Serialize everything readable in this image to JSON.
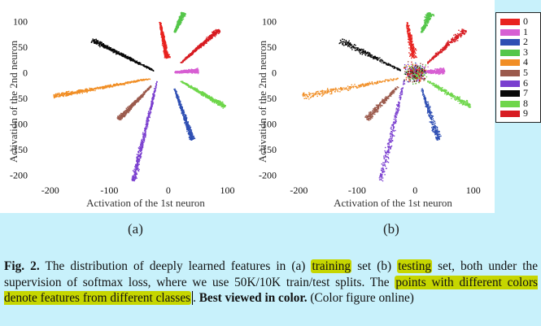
{
  "legend": {
    "items": [
      {
        "label": "0",
        "color": "#e8221f"
      },
      {
        "label": "1",
        "color": "#d75fd3"
      },
      {
        "label": "2",
        "color": "#2f4fb3"
      },
      {
        "label": "3",
        "color": "#55c64a"
      },
      {
        "label": "4",
        "color": "#f18e25"
      },
      {
        "label": "5",
        "color": "#9b5a4c"
      },
      {
        "label": "6",
        "color": "#7a3fcf"
      },
      {
        "label": "7",
        "color": "#0a0a0a"
      },
      {
        "label": "8",
        "color": "#6ed64a"
      },
      {
        "label": "9",
        "color": "#d71c22"
      }
    ]
  },
  "chart_data": [
    {
      "type": "scatter",
      "subcaption": "(a)",
      "xlabel": "Activation of the 1st neuron",
      "ylabel": "Activation of the 2nd neuron",
      "xlim": [
        -230,
        120
      ],
      "ylim": [
        -220,
        120
      ],
      "xticks": [
        "-200",
        "-100",
        "0",
        "100"
      ],
      "yticks": [
        "100",
        "50",
        "0",
        "-50",
        "-100",
        "-150",
        "-200"
      ],
      "grid": false,
      "clusters": [
        {
          "class": "0",
          "from": [
            -15,
            100
          ],
          "to": [
            -3,
            30
          ]
        },
        {
          "class": "1",
          "from": [
            10,
            2
          ],
          "to": [
            50,
            5
          ]
        },
        {
          "class": "2",
          "from": [
            10,
            -30
          ],
          "to": [
            40,
            -130
          ]
        },
        {
          "class": "3",
          "from": [
            10,
            80
          ],
          "to": [
            25,
            118
          ]
        },
        {
          "class": "4",
          "from": [
            -30,
            -10
          ],
          "to": [
            -195,
            -45
          ]
        },
        {
          "class": "5",
          "from": [
            -30,
            -25
          ],
          "to": [
            -85,
            -90
          ]
        },
        {
          "class": "6",
          "from": [
            -20,
            -15
          ],
          "to": [
            -60,
            -210
          ]
        },
        {
          "class": "7",
          "from": [
            -25,
            5
          ],
          "to": [
            -130,
            65
          ]
        },
        {
          "class": "8",
          "from": [
            20,
            -15
          ],
          "to": [
            95,
            -65
          ]
        },
        {
          "class": "9",
          "from": [
            20,
            20
          ],
          "to": [
            85,
            85
          ]
        }
      ]
    },
    {
      "type": "scatter",
      "subcaption": "(b)",
      "xlabel": "Activation of the 1st neuron",
      "ylabel": "Activation of the 2nd neuron",
      "xlim": [
        -230,
        120
      ],
      "ylim": [
        -220,
        120
      ],
      "xticks": [
        "-200",
        "-100",
        "0",
        "100"
      ],
      "yticks": [
        "100",
        "50",
        "0",
        "-50",
        "-100",
        "-150",
        "-200"
      ],
      "grid": false,
      "clusters": [
        {
          "class": "0",
          "from": [
            -15,
            100
          ],
          "to": [
            -3,
            30
          ]
        },
        {
          "class": "1",
          "from": [
            10,
            2
          ],
          "to": [
            50,
            5
          ]
        },
        {
          "class": "2",
          "from": [
            10,
            -30
          ],
          "to": [
            40,
            -130
          ]
        },
        {
          "class": "3",
          "from": [
            10,
            80
          ],
          "to": [
            25,
            118
          ]
        },
        {
          "class": "4",
          "from": [
            -30,
            -10
          ],
          "to": [
            -195,
            -45
          ]
        },
        {
          "class": "5",
          "from": [
            -30,
            -25
          ],
          "to": [
            -85,
            -90
          ]
        },
        {
          "class": "6",
          "from": [
            -20,
            -15
          ],
          "to": [
            -60,
            -210
          ]
        },
        {
          "class": "7",
          "from": [
            -25,
            5
          ],
          "to": [
            -130,
            65
          ]
        },
        {
          "class": "8",
          "from": [
            20,
            -15
          ],
          "to": [
            95,
            -65
          ]
        },
        {
          "class": "9",
          "from": [
            20,
            20
          ],
          "to": [
            85,
            85
          ]
        }
      ]
    }
  ],
  "caption": {
    "label": "Fig. 2.",
    "t1": "The distribution of deeply learned features in (a)",
    "h1": "training",
    "t2": "set (b)",
    "h2": "testing",
    "t3": "set, both under the supervision of softmax loss, where we use 50K/10K train/test splits. The",
    "h3": "points with different colors denote features from different classes",
    "t4": ".",
    "bold": "Best viewed in color.",
    "t5": "(Color figure online)"
  }
}
